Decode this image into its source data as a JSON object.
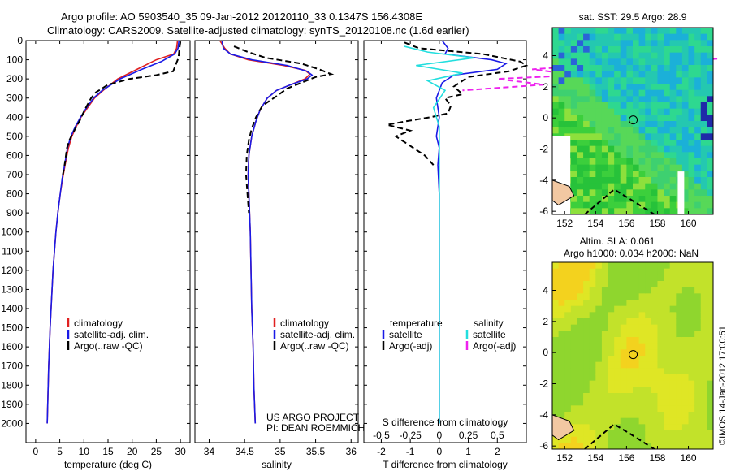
{
  "header": {
    "line1": "Argo profile: AO 5903540_35 09-Jan-2012 20120110_33 0.1347S 156.4308E",
    "line2": "Climatology: CARS2009. Satellite-adjusted climatology: synTS_20120108.nc (1.6d earlier)"
  },
  "colors": {
    "climatology": "#e02020",
    "satellite": "#1a1ae6",
    "argo": "#000000",
    "salinity_satellite": "#22dede",
    "salinity_argo": "#ee22ee"
  },
  "credit": "©IMOS 14-Jan-2012 17:00:51",
  "chart_data": [
    {
      "type": "line",
      "id": "temperature",
      "xlabel": "temperature (deg C)",
      "ylabel": "",
      "xlim": [
        -2,
        32
      ],
      "ylim": [
        2100,
        0
      ],
      "xticks": [
        0,
        5,
        10,
        15,
        20,
        25,
        30
      ],
      "yticks": [
        0,
        100,
        200,
        300,
        400,
        500,
        600,
        700,
        800,
        900,
        1000,
        1100,
        1200,
        1300,
        1400,
        1500,
        1600,
        1700,
        1800,
        1900,
        2000
      ],
      "legend": [
        "climatology",
        "satellite-adj. clim.",
        "Argo(..raw -QC)"
      ],
      "series": [
        {
          "name": "climatology",
          "color": "#e02020",
          "style": "solid",
          "points": [
            [
              29.4,
              0
            ],
            [
              29.2,
              40
            ],
            [
              28.6,
              70
            ],
            [
              25,
              100
            ],
            [
              21,
              150
            ],
            [
              17,
              200
            ],
            [
              14,
              260
            ],
            [
              12.2,
              300
            ],
            [
              10.5,
              360
            ],
            [
              9.4,
              400
            ],
            [
              8.4,
              450
            ],
            [
              7.5,
              500
            ],
            [
              6.8,
              560
            ],
            [
              6.1,
              650
            ],
            [
              5.6,
              720
            ],
            [
              5.1,
              800
            ],
            [
              4.6,
              900
            ],
            [
              4.2,
              1000
            ],
            [
              3.9,
              1100
            ],
            [
              3.6,
              1200
            ],
            [
              3.4,
              1300
            ],
            [
              3.2,
              1400
            ],
            [
              3,
              1500
            ],
            [
              2.85,
              1600
            ],
            [
              2.7,
              1700
            ],
            [
              2.6,
              1800
            ],
            [
              2.5,
              1900
            ],
            [
              2.4,
              2000
            ]
          ]
        },
        {
          "name": "satellite-adj. clim.",
          "color": "#1a1ae6",
          "style": "solid",
          "points": [
            [
              29.7,
              0
            ],
            [
              29.5,
              40
            ],
            [
              28.8,
              70
            ],
            [
              26,
              110
            ],
            [
              22,
              150
            ],
            [
              17.5,
              200
            ],
            [
              13.8,
              260
            ],
            [
              12,
              300
            ],
            [
              10.3,
              360
            ],
            [
              9.3,
              400
            ],
            [
              8.2,
              450
            ],
            [
              7.3,
              500
            ],
            [
              6.6,
              560
            ],
            [
              6,
              650
            ],
            [
              5.5,
              720
            ],
            [
              5.1,
              800
            ],
            [
              4.6,
              900
            ],
            [
              4.2,
              1000
            ],
            [
              3.9,
              1100
            ],
            [
              3.6,
              1200
            ],
            [
              3.4,
              1300
            ],
            [
              3.2,
              1400
            ],
            [
              3,
              1500
            ],
            [
              2.85,
              1600
            ],
            [
              2.7,
              1700
            ],
            [
              2.6,
              1800
            ],
            [
              2.5,
              1900
            ],
            [
              2.4,
              2000
            ]
          ]
        },
        {
          "name": "Argo(..raw -QC)",
          "color": "#000000",
          "style": "dashed",
          "points": [
            [
              30,
              5
            ],
            [
              29.8,
              40
            ],
            [
              29.6,
              90
            ],
            [
              28.5,
              160
            ],
            [
              25,
              180
            ],
            [
              19.5,
              200
            ],
            [
              15,
              230
            ],
            [
              12.5,
              270
            ],
            [
              11.5,
              300
            ],
            [
              10.2,
              360
            ],
            [
              9.1,
              420
            ],
            [
              8,
              470
            ],
            [
              7,
              520
            ],
            [
              6.5,
              560
            ],
            [
              6,
              650
            ],
            [
              5.5,
              720
            ]
          ]
        }
      ]
    },
    {
      "type": "line",
      "id": "salinity",
      "xlabel": "salinity",
      "ylabel": "",
      "xlim": [
        33.8,
        36.1
      ],
      "ylim": [
        2100,
        0
      ],
      "xticks": [
        34,
        34.5,
        35,
        35.5,
        36
      ],
      "legend": [
        "climatology",
        "satellite-adj. clim.",
        "Argo(..raw -QC)"
      ],
      "annotation": [
        "US ARGO PROJECT",
        "PI: DEAN ROEMMICH"
      ],
      "series": [
        {
          "name": "climatology",
          "color": "#e02020",
          "style": "solid",
          "points": [
            [
              34.15,
              0
            ],
            [
              34.22,
              40
            ],
            [
              34.3,
              70
            ],
            [
              34.55,
              100
            ],
            [
              35.05,
              130
            ],
            [
              35.35,
              155
            ],
            [
              35.42,
              175
            ],
            [
              35.35,
              200
            ],
            [
              35.15,
              230
            ],
            [
              34.95,
              260
            ],
            [
              34.82,
              300
            ],
            [
              34.72,
              360
            ],
            [
              34.66,
              420
            ],
            [
              34.6,
              500
            ],
            [
              34.56,
              600
            ],
            [
              34.55,
              700
            ],
            [
              34.56,
              800
            ],
            [
              34.57,
              900
            ],
            [
              34.58,
              1000
            ],
            [
              34.59,
              1200
            ],
            [
              34.6,
              1400
            ],
            [
              34.62,
              1600
            ],
            [
              34.63,
              1800
            ],
            [
              34.65,
              2000
            ]
          ]
        },
        {
          "name": "satellite-adj. clim.",
          "color": "#1a1ae6",
          "style": "solid",
          "points": [
            [
              34.18,
              0
            ],
            [
              34.2,
              40
            ],
            [
              34.3,
              70
            ],
            [
              34.6,
              100
            ],
            [
              35.1,
              130
            ],
            [
              35.38,
              160
            ],
            [
              35.45,
              180
            ],
            [
              35.38,
              200
            ],
            [
              35.15,
              230
            ],
            [
              34.95,
              260
            ],
            [
              34.82,
              300
            ],
            [
              34.72,
              360
            ],
            [
              34.66,
              420
            ],
            [
              34.6,
              500
            ],
            [
              34.56,
              600
            ],
            [
              34.55,
              700
            ],
            [
              34.56,
              800
            ],
            [
              34.57,
              900
            ],
            [
              34.58,
              1000
            ],
            [
              34.59,
              1200
            ],
            [
              34.6,
              1400
            ],
            [
              34.62,
              1600
            ],
            [
              34.63,
              1800
            ],
            [
              34.65,
              2000
            ]
          ]
        },
        {
          "name": "Argo(..raw -QC)",
          "color": "#000000",
          "style": "dashed",
          "points": [
            [
              34.35,
              30
            ],
            [
              34.55,
              60
            ],
            [
              34.8,
              90
            ],
            [
              35.3,
              120
            ],
            [
              35.55,
              150
            ],
            [
              35.72,
              175
            ],
            [
              35.5,
              190
            ],
            [
              35.3,
              220
            ],
            [
              35.1,
              250
            ],
            [
              34.95,
              290
            ],
            [
              34.75,
              340
            ],
            [
              34.66,
              400
            ],
            [
              34.6,
              460
            ],
            [
              34.56,
              520
            ],
            [
              34.53,
              600
            ],
            [
              34.52,
              700
            ],
            [
              34.54,
              800
            ],
            [
              34.56,
              900
            ]
          ]
        }
      ]
    },
    {
      "type": "line",
      "id": "differences",
      "xlabel": "T difference from climatology",
      "xlabel_top": "S difference from climatology",
      "xlim": [
        -2.6,
        3.0
      ],
      "ylim": [
        2100,
        0
      ],
      "xticks": [
        -2,
        -1,
        0,
        1,
        2
      ],
      "xticklabels": [
        "-2",
        "-1",
        "0",
        "1",
        "2"
      ],
      "sticks": [
        -0.5,
        -0.25,
        0,
        0.25,
        0.5
      ],
      "sticklabels": [
        "-0.5",
        "-0.25",
        "0",
        "0.25",
        "0.5"
      ],
      "s_scale": 4,
      "legend_left_title": "temperature",
      "legend_right_title": "salinity",
      "legend": [
        "satellite",
        "Argo(-adj)",
        "satellite",
        "Argo(-adj)"
      ],
      "series": [
        {
          "name": "T satellite",
          "color": "#1a1ae6",
          "style": "solid",
          "points": [
            [
              0.1,
              0
            ],
            [
              0.3,
              40
            ],
            [
              0.2,
              70
            ],
            [
              1.8,
              100
            ],
            [
              2.3,
              120
            ],
            [
              2,
              150
            ],
            [
              0.5,
              180
            ],
            [
              0.1,
              220
            ],
            [
              0,
              260
            ],
            [
              -0.1,
              300
            ],
            [
              0,
              400
            ],
            [
              -0.1,
              500
            ],
            [
              0,
              560
            ],
            [
              -0.05,
              650
            ],
            [
              0,
              800
            ],
            [
              0,
              1000
            ],
            [
              0,
              1500
            ],
            [
              0,
              2000
            ]
          ]
        },
        {
          "name": "T Argo(-adj)",
          "color": "#000000",
          "style": "dashed",
          "points": [
            [
              -1.2,
              10
            ],
            [
              -0.7,
              40
            ],
            [
              1.5,
              70
            ],
            [
              2.8,
              110
            ],
            [
              3,
              130
            ],
            [
              2.4,
              160
            ],
            [
              1,
              190
            ],
            [
              0.5,
              240
            ],
            [
              0.8,
              280
            ],
            [
              0.2,
              300
            ],
            [
              0.4,
              340
            ],
            [
              0.3,
              380
            ],
            [
              -0.3,
              400
            ],
            [
              -1.1,
              420
            ],
            [
              -1.8,
              440
            ],
            [
              -1,
              470
            ],
            [
              -1.5,
              500
            ],
            [
              -1.1,
              540
            ],
            [
              -0.5,
              600
            ],
            [
              -0.2,
              650
            ]
          ]
        },
        {
          "name": "S satellite",
          "color": "#22dede",
          "style": "solid",
          "points": [
            [
              -0.3,
              30
            ],
            [
              -0.1,
              60
            ],
            [
              0.3,
              90
            ],
            [
              -0.2,
              130
            ],
            [
              0.2,
              170
            ],
            [
              -0.1,
              210
            ],
            [
              0.05,
              260
            ],
            [
              -0.05,
              350
            ],
            [
              0,
              450
            ],
            [
              0,
              600
            ],
            [
              0,
              800
            ],
            [
              0,
              1000
            ],
            [
              0,
              1200
            ],
            [
              0,
              1500
            ],
            [
              0,
              1800
            ],
            [
              0,
              2000
            ]
          ]
        },
        {
          "name": "S Argo(-adj)",
          "color": "#ee22ee",
          "style": "dashed",
          "points": [
            [
              1.5,
              80
            ],
            [
              2.4,
              95
            ],
            [
              1.5,
              120
            ],
            [
              0.8,
              150
            ],
            [
              1.2,
              180
            ],
            [
              0.5,
              200
            ],
            [
              0.9,
              230
            ],
            [
              0.2,
              260
            ]
          ]
        }
      ]
    },
    {
      "type": "heatmap",
      "id": "sst-map",
      "title": "sat. SST: 29.5 Argo: 28.9",
      "xlim": [
        151.2,
        161.6
      ],
      "ylim": [
        -6.2,
        5.8
      ],
      "xticks": [
        152,
        154,
        156,
        158,
        160
      ],
      "yticks": [
        4,
        2,
        0,
        -2,
        -4,
        -6
      ],
      "marker": {
        "lon": 156.43,
        "lat": -0.13
      }
    },
    {
      "type": "heatmap",
      "id": "sla-map",
      "title": [
        "Altim. SLA: 0.061",
        "Argo h1000: 0.034 h2000: NaN"
      ],
      "xlim": [
        151.2,
        161.6
      ],
      "ylim": [
        -6.2,
        5.8
      ],
      "xticks": [
        152,
        154,
        156,
        158,
        160
      ],
      "yticks": [
        4,
        2,
        0,
        -2,
        -4,
        -6
      ],
      "marker": {
        "lon": 156.43,
        "lat": -0.13
      }
    }
  ]
}
